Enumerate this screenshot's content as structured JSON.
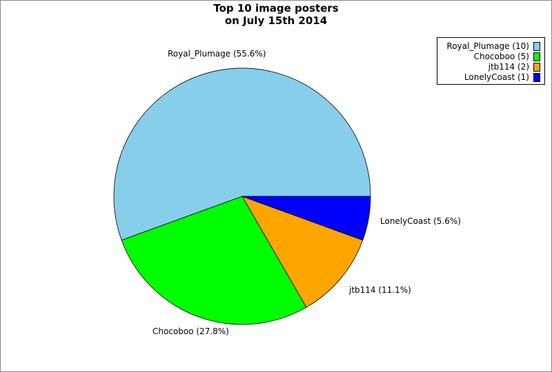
{
  "chart_data": {
    "type": "pie",
    "title_lines": [
      "Top 10 image posters",
      "on July 15th 2014"
    ],
    "slices": [
      {
        "name": "Royal_Plumage",
        "value": 10,
        "percent_label": "Royal_Plumage (55.6%)",
        "legend_label": "Royal_Plumage (10)",
        "color": "#87ceeb"
      },
      {
        "name": "Chocoboo",
        "value": 5,
        "percent_label": "Chocoboo (27.8%)",
        "legend_label": "Chocoboo (5)",
        "color": "#00ff00"
      },
      {
        "name": "jtb114",
        "value": 2,
        "percent_label": "jtb114 (11.1%)",
        "legend_label": "jtb114 (2)",
        "color": "#ffa500"
      },
      {
        "name": "LonelyCoast",
        "value": 1,
        "percent_label": "LonelyCoast (5.6%)",
        "legend_label": "LonelyCoast (1)",
        "color": "#0000ff"
      }
    ],
    "legend_placement": "top-right"
  }
}
